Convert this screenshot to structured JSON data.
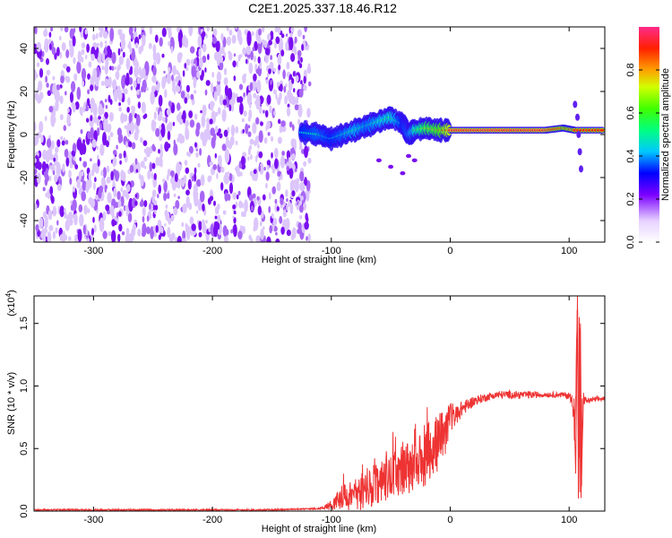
{
  "title": "C2E1.2025.337.18.46.R12",
  "colors": {
    "snr_line": "#ee3333",
    "low_signal": "#8a2be2"
  },
  "chart_data": [
    {
      "type": "heatmap",
      "name": "spectrogram",
      "xlabel": "Height of straight line (km)",
      "ylabel": "Frequency (Hz)",
      "xlim": [
        -350,
        130
      ],
      "ylim": [
        -50,
        50
      ],
      "xticks": [
        -300,
        -200,
        -100,
        0,
        100
      ],
      "yticks": [
        -40,
        -20,
        0,
        20,
        40
      ],
      "xtick_labels": [
        "-300",
        "-200",
        "-100",
        "0",
        "100"
      ],
      "ytick_labels": [
        "-40",
        "-20",
        "0",
        "20",
        "40"
      ],
      "colorbar": {
        "label": "Normalized spectral amplitude",
        "range": [
          0,
          1
        ],
        "ticks": [
          0.0,
          0.2,
          0.4,
          0.6,
          0.8
        ],
        "tick_labels": [
          "0.0",
          "0.2",
          "0.4",
          "0.6",
          "0.8"
        ]
      },
      "regions": [
        {
          "description": "noise",
          "x_range": [
            -350,
            -118
          ],
          "freq_range": [
            -50,
            50
          ],
          "amplitude": 0.1
        },
        {
          "description": "carrier",
          "x_range": [
            -118,
            130
          ],
          "freq": 2,
          "amplitude": 0.9
        }
      ],
      "carrier_trace": {
        "x": [
          -125,
          -110,
          -100,
          -90,
          -80,
          -70,
          -60,
          -50,
          -40,
          -35,
          -30,
          -20,
          -10,
          0,
          20,
          40,
          60,
          80,
          95,
          105,
          130
        ],
        "freq": [
          1,
          0,
          -2,
          0,
          2,
          4,
          6,
          8,
          5,
          0,
          2,
          3,
          2,
          2,
          2,
          2,
          2,
          2,
          3,
          2,
          2
        ],
        "amplitude": [
          0.45,
          0.5,
          0.45,
          0.5,
          0.55,
          0.5,
          0.55,
          0.6,
          0.45,
          0.5,
          0.6,
          0.75,
          0.8,
          0.95,
          0.95,
          0.95,
          0.95,
          0.95,
          0.85,
          0.9,
          0.9
        ]
      },
      "branch": {
        "x": [
          -60,
          -50,
          -40,
          -35,
          -30
        ],
        "freq": [
          -12,
          -15,
          -18,
          -10,
          -12
        ]
      },
      "spike": {
        "x": [
          105,
          107,
          108,
          109,
          110
        ],
        "freq": [
          14,
          8,
          0,
          -8,
          -16
        ]
      }
    },
    {
      "type": "line",
      "name": "snr",
      "xlabel": "Height of straight line (km)",
      "ylabel": "SNR (10 * v/v)",
      "multiplier_label": "(x10",
      "multiplier_exponent": "4",
      "multiplier_close": ")",
      "xlim": [
        -350,
        130
      ],
      "ylim": [
        0,
        1.72
      ],
      "xticks": [
        -300,
        -200,
        -100,
        0,
        100
      ],
      "yticks": [
        0.0,
        0.5,
        1.0,
        1.5
      ],
      "xtick_labels": [
        "-300",
        "-200",
        "-100",
        "0",
        "100"
      ],
      "ytick_labels": [
        "0.0",
        "0.5",
        "1.0",
        "1.5"
      ],
      "series": [
        {
          "name": "SNR",
          "x": [
            -350,
            -300,
            -250,
            -200,
            -150,
            -110,
            -100,
            -95,
            -90,
            -80,
            -70,
            -60,
            -50,
            -40,
            -30,
            -20,
            -10,
            -5,
            0,
            10,
            20,
            30,
            40,
            60,
            80,
            95,
            100,
            103,
            105,
            107,
            108,
            109,
            110,
            112,
            115,
            120,
            130
          ],
          "values": [
            0.01,
            0.01,
            0.01,
            0.01,
            0.01,
            0.02,
            0.05,
            0.08,
            0.11,
            0.13,
            0.16,
            0.22,
            0.27,
            0.32,
            0.37,
            0.45,
            0.55,
            0.62,
            0.74,
            0.82,
            0.88,
            0.91,
            0.93,
            0.93,
            0.93,
            0.93,
            0.92,
            0.88,
            0.6,
            1.72,
            0.25,
            1.55,
            0.1,
            0.9,
            0.88,
            0.89,
            0.9
          ],
          "noise": [
            0.0,
            0.0,
            0.0,
            0.0,
            0.0,
            0.0,
            0.04,
            0.08,
            0.1,
            0.14,
            0.15,
            0.17,
            0.18,
            0.2,
            0.22,
            0.25,
            0.22,
            0.2,
            0.12,
            0.06,
            0.04,
            0.03,
            0.03,
            0.03,
            0.02,
            0.02,
            0.03,
            0.05,
            0.2,
            0.0,
            0.0,
            0.0,
            0.0,
            0.05,
            0.02,
            0.02,
            0.02
          ]
        }
      ]
    }
  ]
}
